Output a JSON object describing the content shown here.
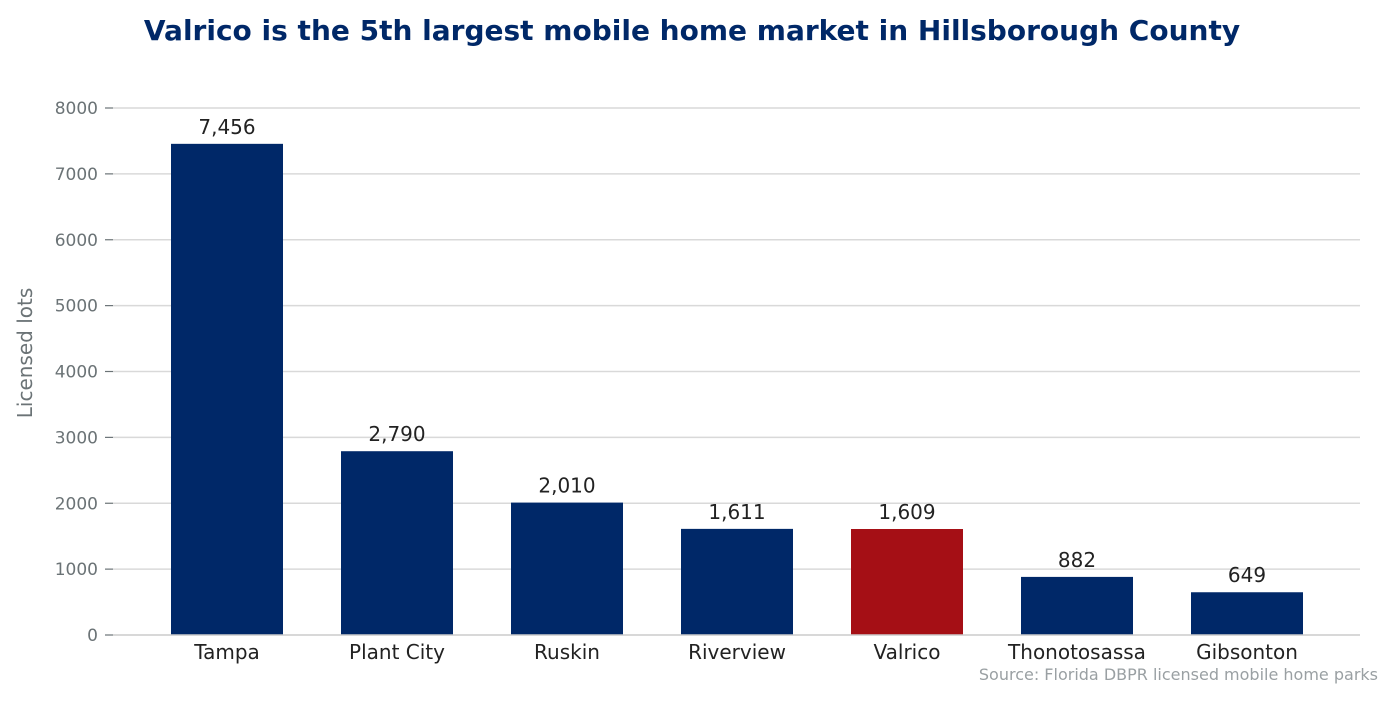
{
  "chart_data": {
    "type": "bar",
    "title": "Valrico is the 5th largest mobile home market in Hillsborough County",
    "ylabel": "Licensed lots",
    "xlabel": "",
    "categories": [
      "Tampa",
      "Plant City",
      "Ruskin",
      "Riverview",
      "Valrico",
      "Thonotosassa",
      "Gibsonton"
    ],
    "values": [
      7456,
      2790,
      2010,
      1611,
      1609,
      882,
      649
    ],
    "value_labels": [
      "7,456",
      "2,790",
      "2,010",
      "1,611",
      "1,609",
      "882",
      "649"
    ],
    "highlight_category": "Valrico",
    "ylim": [
      0,
      8000
    ],
    "yticks": [
      0,
      1000,
      2000,
      3000,
      4000,
      5000,
      6000,
      7000,
      8000
    ],
    "ytick_labels": [
      "0",
      "1000",
      "2000",
      "3000",
      "4000",
      "5000",
      "6000",
      "7000",
      "8000"
    ],
    "grid": "horizontal",
    "legend": "none",
    "source_note": "Source: Florida DBPR licensed mobile home parks"
  },
  "colors": {
    "bar": "#002868",
    "highlight": "#A50F15",
    "title": "#002868",
    "grid": "#d9d9d9",
    "axis_text": "#6b7376",
    "label_text": "#222222",
    "source_text": "#9aa0a3"
  }
}
